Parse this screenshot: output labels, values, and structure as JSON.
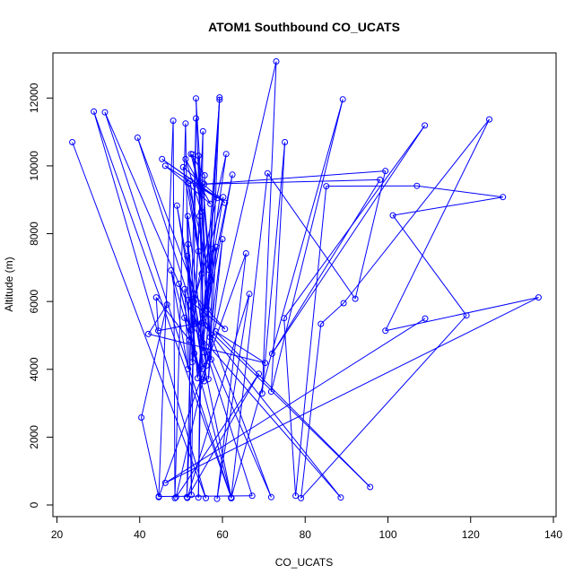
{
  "chart_data": {
    "type": "line",
    "title": "ATOM1 Southbound CO_UCATS",
    "xlabel": "CO_UCATS",
    "ylabel": "Altitude (m)",
    "xlim": [
      20,
      140
    ],
    "ylim": [
      0,
      13000
    ],
    "xticks": [
      "20",
      "40",
      "60",
      "80",
      "100",
      "120",
      "140"
    ],
    "yticks": [
      "0",
      "2000",
      "4000",
      "6000",
      "8000",
      "10000",
      "12000"
    ],
    "color": "#0000ff",
    "grid": false,
    "points": [
      [
        23.7,
        10700
      ],
      [
        56.0,
        200
      ],
      [
        28.9,
        11600
      ],
      [
        62.1,
        220
      ],
      [
        31.6,
        11580
      ],
      [
        71.8,
        230
      ],
      [
        39.5,
        10830
      ],
      [
        67.2,
        270
      ],
      [
        44.6,
        250
      ],
      [
        48.1,
        11330
      ],
      [
        48.5,
        200
      ],
      [
        51.1,
        11250
      ],
      [
        52.5,
        300
      ],
      [
        53.6,
        11400
      ],
      [
        51.4,
        230
      ],
      [
        55.3,
        11020
      ],
      [
        54.2,
        220
      ],
      [
        55.7,
        9720
      ],
      [
        52.4,
        10350
      ],
      [
        54.3,
        9410
      ],
      [
        52.8,
        10340
      ],
      [
        54.9,
        8650
      ],
      [
        51.1,
        10200
      ],
      [
        57.1,
        8880
      ],
      [
        46.2,
        10000
      ],
      [
        58.7,
        9050
      ],
      [
        45.4,
        10200
      ],
      [
        60.6,
        8910
      ],
      [
        50.5,
        9960
      ],
      [
        54.2,
        7480
      ],
      [
        52.2,
        9560
      ],
      [
        55.0,
        6820
      ],
      [
        51.7,
        9480
      ],
      [
        57.3,
        6620
      ],
      [
        55.2,
        9500
      ],
      [
        56.7,
        6940
      ],
      [
        59.3,
        11950
      ],
      [
        55.4,
        5600
      ],
      [
        60.2,
        9080
      ],
      [
        53.1,
        6000
      ],
      [
        60.9,
        10350
      ],
      [
        55.0,
        5370
      ],
      [
        62.4,
        9740
      ],
      [
        56.4,
        5760
      ],
      [
        59.3,
        12020
      ],
      [
        57.0,
        4950
      ],
      [
        53.6,
        11990
      ],
      [
        55.6,
        4500
      ],
      [
        54.2,
        10300
      ],
      [
        57.3,
        4290
      ],
      [
        54.5,
        8520
      ],
      [
        52.7,
        4210
      ],
      [
        51.6,
        8520
      ],
      [
        56.1,
        4110
      ],
      [
        49.0,
        8830
      ],
      [
        55.3,
        4010
      ],
      [
        51.7,
        7690
      ],
      [
        53.2,
        4470
      ],
      [
        51.5,
        7340
      ],
      [
        54.0,
        3740
      ],
      [
        57.6,
        7550
      ],
      [
        55.6,
        3650
      ],
      [
        60.0,
        7840
      ],
      [
        56.6,
        3710
      ],
      [
        58.5,
        7610
      ],
      [
        54.4,
        3990
      ],
      [
        49.5,
        6520
      ],
      [
        55.0,
        3700
      ],
      [
        47.6,
        6920
      ],
      [
        51.7,
        4010
      ],
      [
        50.9,
        6370
      ],
      [
        52.4,
        5160
      ],
      [
        52.9,
        6230
      ],
      [
        60.6,
        5190
      ],
      [
        51.8,
        6050
      ],
      [
        52.0,
        4870
      ],
      [
        44.0,
        6120
      ],
      [
        44.5,
        5140
      ],
      [
        53.5,
        5350
      ],
      [
        62.2,
        200
      ],
      [
        50.8,
        5520
      ],
      [
        88.6,
        220
      ],
      [
        55.1,
        5370
      ],
      [
        95.7,
        530
      ],
      [
        58.3,
        5120
      ],
      [
        70.3,
        4190
      ],
      [
        42.1,
        5040
      ],
      [
        46.6,
        5910
      ],
      [
        40.4,
        2580
      ],
      [
        44.6,
        230
      ],
      [
        65.7,
        7420
      ],
      [
        58.7,
        180
      ],
      [
        66.5,
        6220
      ],
      [
        51.5,
        210
      ],
      [
        68.8,
        3870
      ],
      [
        48.8,
        230
      ],
      [
        73.0,
        13080
      ],
      [
        69.6,
        3290
      ],
      [
        75.1,
        10700
      ],
      [
        71.8,
        3340
      ],
      [
        89.1,
        11960
      ],
      [
        62.1,
        200
      ],
      [
        70.9,
        9780
      ],
      [
        92.1,
        6080
      ],
      [
        99.4,
        9850
      ],
      [
        55.6,
        9460
      ],
      [
        98.1,
        9590
      ],
      [
        72.0,
        4460
      ],
      [
        108.9,
        11190
      ],
      [
        74.9,
        5510
      ],
      [
        77.7,
        270
      ],
      [
        85.1,
        9400
      ],
      [
        107.0,
        9410
      ],
      [
        127.8,
        9080
      ],
      [
        101.2,
        8540
      ],
      [
        119.0,
        5590
      ],
      [
        79.0,
        200
      ],
      [
        83.8,
        5340
      ],
      [
        89.3,
        5950
      ],
      [
        124.5,
        11370
      ],
      [
        99.4,
        5140
      ],
      [
        136.4,
        6120
      ],
      [
        46.2,
        650
      ],
      [
        109.0,
        5500
      ]
    ]
  }
}
